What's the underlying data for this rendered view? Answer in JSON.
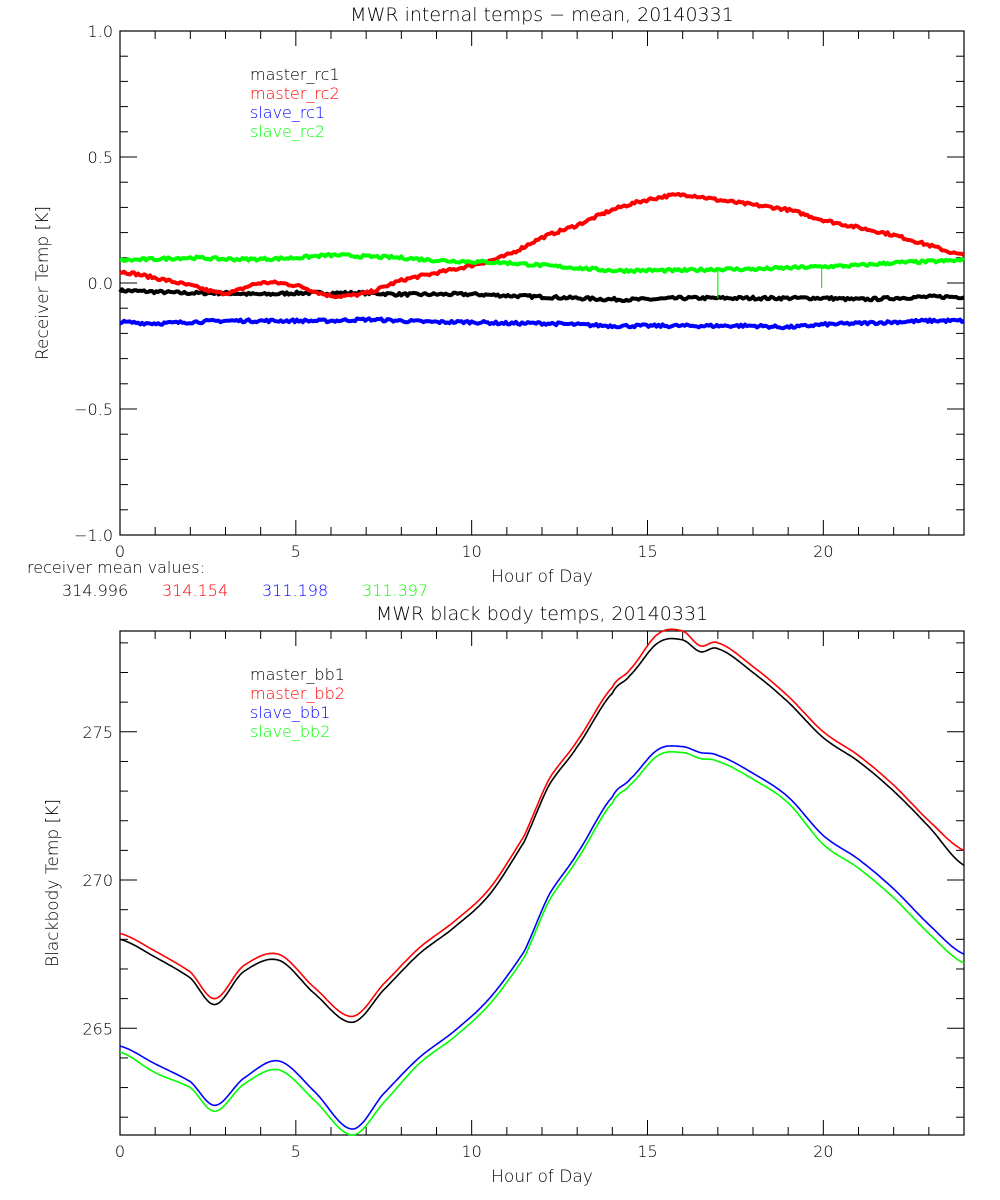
{
  "chart_data": [
    {
      "type": "line",
      "title": "MWR internal temps − mean, 20140331",
      "xlabel": "Hour of Day",
      "ylabel": "Receiver Temp [K]",
      "xlim": [
        0,
        24
      ],
      "ylim": [
        -1.0,
        1.0
      ],
      "xticks": [
        0,
        5,
        10,
        15,
        20
      ],
      "xtick_labels": [
        "0",
        "5",
        "10",
        "15",
        "20"
      ],
      "x_minor_step": 1,
      "yticks": [
        -1.0,
        -0.5,
        0.0,
        0.5,
        1.0
      ],
      "ytick_labels": [
        "−1.0",
        "−0.5",
        "0.0",
        "0.5",
        "1.0"
      ],
      "y_minor_step": 0.1,
      "grid": false,
      "legend_position": "top-left",
      "x": [
        0,
        1,
        2,
        3,
        4,
        5,
        6,
        7,
        8,
        9,
        10,
        11,
        12,
        13,
        14,
        15,
        16,
        17,
        18,
        19,
        20,
        21,
        22,
        23,
        24
      ],
      "series": [
        {
          "name": "master_rc1",
          "color": "#000000",
          "values": [
            -0.03,
            -0.035,
            -0.04,
            -0.04,
            -0.045,
            -0.04,
            -0.04,
            -0.04,
            -0.045,
            -0.045,
            -0.045,
            -0.05,
            -0.055,
            -0.06,
            -0.065,
            -0.065,
            -0.06,
            -0.06,
            -0.06,
            -0.06,
            -0.06,
            -0.065,
            -0.06,
            -0.055,
            -0.055
          ]
        },
        {
          "name": "master_rc2",
          "color": "#ff0000",
          "values": [
            0.045,
            0.02,
            -0.01,
            -0.04,
            0.0,
            -0.01,
            -0.05,
            -0.04,
            0.01,
            0.04,
            0.07,
            0.11,
            0.18,
            0.23,
            0.29,
            0.33,
            0.35,
            0.33,
            0.31,
            0.29,
            0.25,
            0.22,
            0.19,
            0.15,
            0.11
          ]
        },
        {
          "name": "slave_rc1",
          "color": "#0000ff",
          "values": [
            -0.155,
            -0.16,
            -0.155,
            -0.15,
            -0.15,
            -0.15,
            -0.15,
            -0.145,
            -0.15,
            -0.155,
            -0.155,
            -0.16,
            -0.16,
            -0.165,
            -0.17,
            -0.17,
            -0.17,
            -0.17,
            -0.17,
            -0.175,
            -0.165,
            -0.16,
            -0.155,
            -0.15,
            -0.15
          ]
        },
        {
          "name": "slave_rc2",
          "color": "#00ff00",
          "values": [
            0.09,
            0.095,
            0.1,
            0.095,
            0.095,
            0.1,
            0.11,
            0.105,
            0.1,
            0.09,
            0.085,
            0.08,
            0.07,
            0.06,
            0.05,
            0.05,
            0.05,
            0.055,
            0.055,
            0.06,
            0.065,
            0.07,
            0.08,
            0.085,
            0.09
          ]
        }
      ],
      "annotations": [
        {
          "series": "slave_rc2",
          "x": 17.0,
          "spike_to": -0.06
        },
        {
          "series": "slave_rc2",
          "x": 19.95,
          "spike_to": -0.02
        }
      ]
    },
    {
      "type": "line",
      "title": "MWR black body temps, 20140331",
      "xlabel": "Hour of Day",
      "ylabel": "Blackbody Temp [K]",
      "xlim": [
        0,
        24
      ],
      "ylim": [
        261.4,
        278.4
      ],
      "xticks": [
        0,
        5,
        10,
        15,
        20
      ],
      "xtick_labels": [
        "0",
        "5",
        "10",
        "15",
        "20"
      ],
      "x_minor_step": 1,
      "yticks": [
        265,
        270,
        275
      ],
      "ytick_labels": [
        "265",
        "270",
        "275"
      ],
      "y_minor_step": 1,
      "grid": false,
      "legend_position": "top-left",
      "x": [
        0,
        1,
        2,
        2.7,
        3.5,
        4.5,
        5.5,
        6.6,
        7.5,
        8.5,
        9.5,
        10.5,
        11.5,
        12.2,
        13,
        14,
        14.5,
        15.3,
        16,
        16.5,
        17,
        18,
        19,
        20,
        21,
        22,
        23,
        24
      ],
      "series": [
        {
          "name": "master_bb1",
          "color": "#000000",
          "values": [
            268.0,
            267.4,
            266.7,
            265.8,
            266.9,
            267.3,
            266.2,
            265.2,
            266.3,
            267.5,
            268.4,
            269.5,
            271.3,
            273.2,
            274.5,
            276.3,
            276.9,
            278.0,
            278.1,
            277.7,
            277.8,
            277.0,
            276.0,
            274.8,
            274.0,
            273.0,
            271.8,
            270.5
          ]
        },
        {
          "name": "master_bb2",
          "color": "#ff0000",
          "values": [
            268.2,
            267.6,
            266.9,
            266.0,
            267.1,
            267.5,
            266.4,
            265.4,
            266.5,
            267.7,
            268.6,
            269.7,
            271.5,
            273.4,
            274.7,
            276.5,
            277.1,
            278.3,
            278.4,
            277.9,
            278.0,
            277.2,
            276.2,
            275.0,
            274.2,
            273.2,
            272.0,
            271.0
          ]
        },
        {
          "name": "slave_bb1",
          "color": "#0000ff",
          "values": [
            264.4,
            263.8,
            263.2,
            262.4,
            263.3,
            263.9,
            262.9,
            261.6,
            262.8,
            264.0,
            264.9,
            266.0,
            267.6,
            269.5,
            270.9,
            272.8,
            273.4,
            274.4,
            274.5,
            274.3,
            274.2,
            273.6,
            272.8,
            271.5,
            270.7,
            269.7,
            268.5,
            267.5
          ]
        },
        {
          "name": "slave_bb2",
          "color": "#00ff00",
          "values": [
            264.2,
            263.5,
            263.0,
            262.2,
            263.1,
            263.6,
            262.6,
            261.4,
            262.5,
            263.8,
            264.7,
            265.8,
            267.4,
            269.3,
            270.7,
            272.6,
            273.2,
            274.2,
            274.3,
            274.1,
            274.0,
            273.4,
            272.6,
            271.2,
            270.4,
            269.4,
            268.2,
            267.2
          ]
        }
      ]
    }
  ],
  "receiver_means": {
    "label": "receiver mean values:",
    "values": [
      {
        "text": "314.996",
        "color": "#000000"
      },
      {
        "text": "314.154",
        "color": "#ff0000"
      },
      {
        "text": "311.198",
        "color": "#0000ff"
      },
      {
        "text": "311.397",
        "color": "#00ff00"
      }
    ]
  }
}
